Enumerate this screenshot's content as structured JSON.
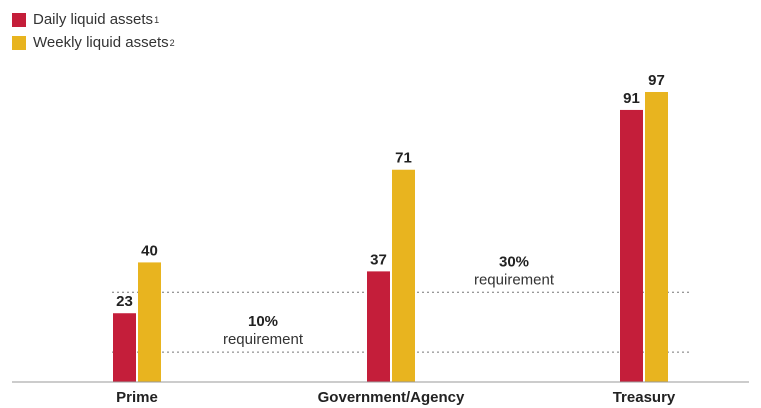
{
  "chart_data": {
    "type": "bar",
    "categories": [
      "Prime",
      "Government/Agency",
      "Treasury"
    ],
    "series": [
      {
        "name": "Daily liquid assets",
        "footnote": "1",
        "color": "#c41e3a",
        "values": [
          23,
          37,
          91
        ]
      },
      {
        "name": "Weekly liquid assets",
        "footnote": "2",
        "color": "#e8b41f",
        "values": [
          40,
          71,
          97
        ]
      }
    ],
    "reference_lines": [
      {
        "value": 10,
        "pct_label": "10%",
        "sub_label": "requirement"
      },
      {
        "value": 30,
        "pct_label": "30%",
        "sub_label": "requirement"
      }
    ],
    "ylim": [
      0,
      100
    ],
    "grid": false,
    "legend_position": "top-left"
  }
}
